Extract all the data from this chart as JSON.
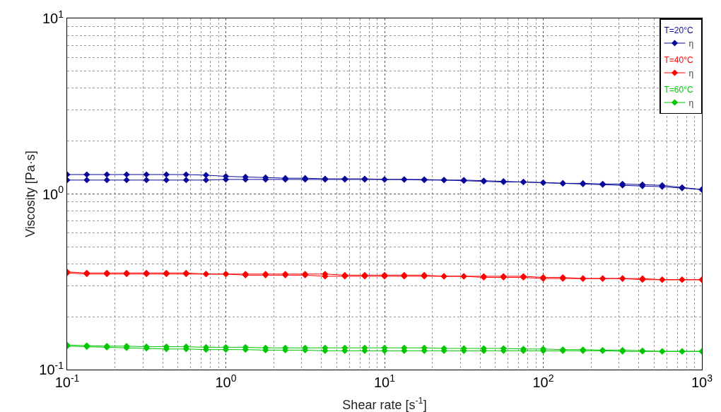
{
  "chart_data": {
    "type": "line",
    "xlabel": "Shear rate [s$^{-1}$]",
    "ylabel": "Viscosity [Pa·s]",
    "x": [
      0.1,
      0.133,
      0.178,
      0.237,
      0.316,
      0.422,
      0.562,
      0.75,
      1,
      1.33,
      1.78,
      2.37,
      3.16,
      4.22,
      5.62,
      7.5,
      10,
      13.3,
      17.8,
      23.7,
      31.6,
      42.2,
      56.2,
      75,
      100,
      133,
      178,
      237,
      316,
      422,
      562,
      750,
      1000,
      1000,
      750,
      562,
      422,
      316,
      237,
      178,
      133,
      100,
      75,
      56.2,
      42.2,
      31.6,
      23.7,
      17.8,
      13.3,
      10,
      7.5,
      5.62,
      4.22,
      3.16,
      2.37,
      1.78,
      1.33,
      1,
      0.75,
      0.562,
      0.422,
      0.316,
      0.237,
      0.178,
      0.133,
      0.1
    ],
    "series": [
      {
        "name": "η",
        "color": "#0a0a9a",
        "values": [
          1.29,
          1.29,
          1.29,
          1.29,
          1.29,
          1.29,
          1.29,
          1.28,
          1.26,
          1.25,
          1.24,
          1.23,
          1.23,
          1.22,
          1.22,
          1.22,
          1.21,
          1.21,
          1.21,
          1.2,
          1.2,
          1.19,
          1.18,
          1.17,
          1.16,
          1.15,
          1.15,
          1.14,
          1.14,
          1.13,
          1.12,
          1.09,
          1.06,
          1.06,
          1.08,
          1.1,
          1.11,
          1.12,
          1.13,
          1.14,
          1.15,
          1.16,
          1.17,
          1.17,
          1.18,
          1.19,
          1.2,
          1.2,
          1.21,
          1.21,
          1.21,
          1.21,
          1.21,
          1.21,
          1.21,
          1.21,
          1.21,
          1.21,
          1.2,
          1.2,
          1.2,
          1.2,
          1.2,
          1.2,
          1.2,
          1.2
        ]
      },
      {
        "name": "η",
        "color": "#ff0000",
        "values": [
          0.36,
          0.355,
          0.355,
          0.355,
          0.355,
          0.355,
          0.355,
          0.35,
          0.35,
          0.35,
          0.35,
          0.35,
          0.35,
          0.35,
          0.345,
          0.345,
          0.345,
          0.345,
          0.345,
          0.34,
          0.34,
          0.34,
          0.34,
          0.34,
          0.335,
          0.335,
          0.33,
          0.33,
          0.33,
          0.33,
          0.325,
          0.325,
          0.325,
          0.325,
          0.325,
          0.325,
          0.325,
          0.33,
          0.33,
          0.33,
          0.33,
          0.33,
          0.335,
          0.335,
          0.335,
          0.34,
          0.34,
          0.34,
          0.34,
          0.34,
          0.34,
          0.34,
          0.34,
          0.345,
          0.345,
          0.345,
          0.345,
          0.35,
          0.35,
          0.35,
          0.35,
          0.35,
          0.35,
          0.35,
          0.35,
          0.355
        ]
      },
      {
        "name": "η",
        "color": "#00c800",
        "values": [
          0.138,
          0.137,
          0.136,
          0.136,
          0.135,
          0.135,
          0.135,
          0.134,
          0.134,
          0.134,
          0.133,
          0.133,
          0.133,
          0.133,
          0.133,
          0.133,
          0.133,
          0.133,
          0.133,
          0.132,
          0.132,
          0.132,
          0.132,
          0.131,
          0.131,
          0.13,
          0.13,
          0.129,
          0.129,
          0.128,
          0.127,
          0.127,
          0.127,
          0.127,
          0.127,
          0.127,
          0.127,
          0.127,
          0.128,
          0.128,
          0.128,
          0.128,
          0.128,
          0.128,
          0.128,
          0.128,
          0.128,
          0.128,
          0.128,
          0.128,
          0.128,
          0.128,
          0.128,
          0.129,
          0.129,
          0.129,
          0.13,
          0.13,
          0.13,
          0.131,
          0.131,
          0.132,
          0.133,
          0.134,
          0.135,
          0.136
        ]
      }
    ],
    "annotations": [
      "T=20°C",
      "T=40°C",
      "T=60°C"
    ],
    "log": "xy",
    "xlim": [
      0.1,
      1000
    ],
    "ylim": [
      0.1,
      10
    ],
    "xticks": [
      {
        "value": 0.1,
        "label": "10$^{-1}$"
      },
      {
        "value": 1,
        "label": "10$^{0}$"
      },
      {
        "value": 10,
        "label": "10$^{1}$"
      },
      {
        "value": 100,
        "label": "10$^{2}$"
      },
      {
        "value": 1000,
        "label": "10$^{3}$"
      }
    ],
    "yticks": [
      {
        "value": 0.1,
        "label": "10$^{-1}$"
      },
      {
        "value": 1,
        "label": "10$^{0}$"
      },
      {
        "value": 10,
        "label": "10$^{1}$"
      }
    ],
    "grid": true,
    "legend": "top right",
    "marker": "diamond",
    "line_style": "solid"
  }
}
